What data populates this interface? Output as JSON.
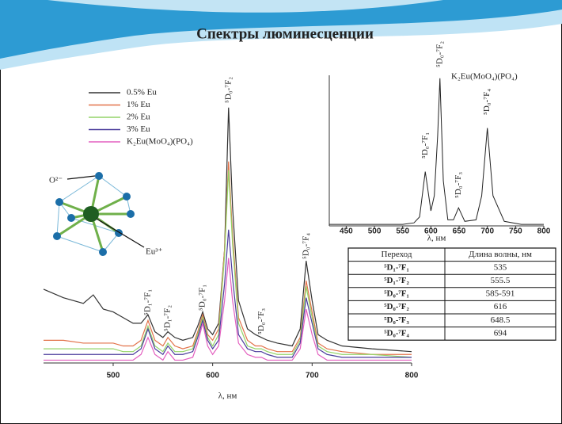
{
  "slide_title": "Спектры люминесценции",
  "chart_data": [
    {
      "type": "line",
      "xlabel": "λ, нм",
      "x": [
        430,
        450,
        470,
        480,
        490,
        500,
        510,
        520,
        528,
        535,
        542,
        550,
        555,
        562,
        570,
        580,
        585,
        590,
        595,
        600,
        606,
        612,
        616,
        620,
        626,
        635,
        643,
        649,
        655,
        665,
        680,
        688,
        694,
        700,
        706,
        715,
        730,
        760,
        800
      ],
      "xlim": [
        430,
        800
      ],
      "xticks": [
        500,
        600,
        700,
        800
      ],
      "ylim": [
        0,
        100
      ],
      "series": [
        {
          "name": "0.5% Eu",
          "color": "#333333",
          "values": [
            26,
            23,
            21,
            24,
            19,
            18,
            16,
            14,
            14,
            17,
            11,
            9,
            11,
            9,
            8,
            9,
            13,
            18,
            12,
            10,
            14,
            40,
            90,
            55,
            22,
            12,
            10,
            9,
            8,
            7,
            6,
            12,
            36,
            22,
            10,
            8,
            6,
            5,
            4
          ]
        },
        {
          "name": "1% Eu",
          "color": "#e2724a",
          "values": [
            8,
            8,
            7,
            7,
            7,
            7,
            6,
            6,
            8,
            15,
            8,
            6,
            9,
            6,
            5,
            6,
            11,
            17,
            10,
            8,
            12,
            40,
            71,
            45,
            16,
            8,
            6,
            6,
            5,
            4,
            4,
            9,
            29,
            18,
            7,
            5,
            4,
            3,
            3
          ]
        },
        {
          "name": "2% Eu",
          "color": "#94d468",
          "values": [
            5,
            5,
            5,
            5,
            5,
            5,
            4,
            4,
            6,
            13,
            6,
            4,
            7,
            4,
            4,
            5,
            10,
            16,
            9,
            6,
            10,
            38,
            68,
            42,
            14,
            6,
            5,
            5,
            4,
            3,
            3,
            8,
            27,
            16,
            6,
            4,
            3,
            3,
            2
          ]
        },
        {
          "name": "3% Eu",
          "color": "#4b3d9c",
          "values": [
            3,
            3,
            3,
            3,
            3,
            3,
            3,
            3,
            5,
            12,
            5,
            3,
            6,
            3,
            3,
            4,
            9,
            15,
            8,
            5,
            8,
            28,
            47,
            30,
            10,
            5,
            4,
            4,
            3,
            2,
            2,
            7,
            23,
            14,
            5,
            3,
            2,
            2,
            2
          ]
        },
        {
          "name": "K₂Eu(MoO₄)(PO₄)",
          "color": "#e35fbf",
          "values": [
            1,
            1,
            1,
            1,
            1,
            1,
            1,
            1,
            3,
            9,
            3,
            1,
            4,
            1,
            1,
            2,
            7,
            14,
            6,
            3,
            6,
            22,
            37,
            22,
            7,
            3,
            2,
            2,
            1,
            1,
            1,
            5,
            19,
            10,
            3,
            1,
            1,
            1,
            1
          ]
        }
      ],
      "annotations": [
        "⁵D₁-⁷F₁",
        "⁵D₁-⁷F₂",
        "⁵D₀-⁷F₁",
        "⁵D₀-⁷F₂",
        "⁵D₀-⁷F₃",
        "⁵D₀-⁷F₄"
      ]
    },
    {
      "type": "line",
      "title": "K₂Eu(MoO₄)(PO₄)",
      "xlabel": "λ, нм",
      "x": [
        420,
        450,
        500,
        550,
        570,
        580,
        590,
        600,
        606,
        612,
        616,
        622,
        630,
        640,
        649,
        660,
        680,
        690,
        700,
        710,
        730,
        760,
        800
      ],
      "xlim": [
        420,
        800
      ],
      "xticks": [
        450,
        500,
        550,
        600,
        650,
        700,
        750,
        800
      ],
      "ylim": [
        0,
        100
      ],
      "series": [
        {
          "color": "#222222",
          "values": [
            1,
            1,
            1,
            1,
            2,
            6,
            36,
            10,
            20,
            60,
            98,
            30,
            4,
            4,
            12,
            3,
            4,
            20,
            65,
            20,
            3,
            1,
            1
          ]
        }
      ],
      "annotations": [
        "⁵D₀-⁷F₁",
        "⁵D₀-⁷F₂",
        "⁵D₀-⁷F₃",
        "⁵D₀-⁷F₄"
      ]
    }
  ],
  "table": {
    "header": [
      "Переход",
      "Длина волны, нм"
    ],
    "rows": [
      [
        "⁵D₁-⁷F₁",
        "535"
      ],
      [
        "⁵D₁-⁷F₂",
        "555.5"
      ],
      [
        "⁵D₀-⁷F₁",
        "585-591"
      ],
      [
        "⁵D₀-⁷F₂",
        "616"
      ],
      [
        "⁵D₀-⁷F₃",
        "648.5"
      ],
      [
        "⁵D₀-⁷F₄",
        "694"
      ]
    ]
  },
  "diagram": {
    "oxygen_label": "O²⁻",
    "europium_label": "Eu³⁺"
  }
}
